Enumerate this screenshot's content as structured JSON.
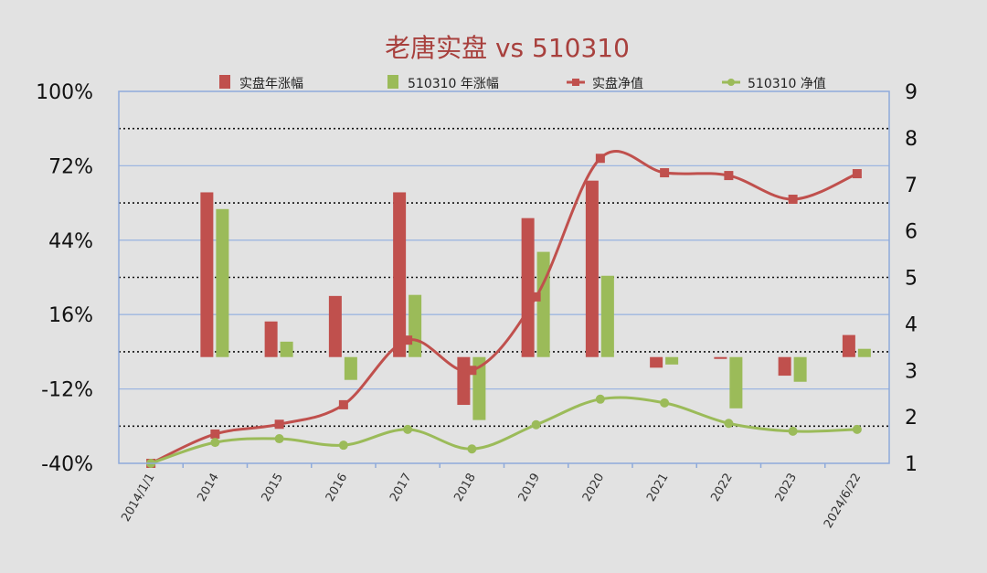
{
  "chart_data": {
    "type": "bar+line",
    "title": "老唐实盘 vs 510310",
    "categories": [
      "2014/1/1",
      "2014",
      "2015",
      "2016",
      "2017",
      "2018",
      "2019",
      "2020",
      "2021",
      "2022",
      "2023",
      "2024/6/22"
    ],
    "legend": [
      "实盘年涨幅",
      "510310 年涨幅",
      "实盘净值",
      "510310 净值"
    ],
    "legend_position": "top",
    "y_left": {
      "ticks": [
        "100%",
        "72%",
        "44%",
        "16%",
        "-12%",
        "-40%"
      ],
      "range": [
        -40,
        100
      ],
      "unit": "%"
    },
    "y_right": {
      "ticks": [
        "1",
        "2",
        "3",
        "4",
        "5",
        "6",
        "7",
        "8",
        "9"
      ],
      "range": [
        1,
        9
      ]
    },
    "series": [
      {
        "name": "实盘年涨幅",
        "type": "bar",
        "axis": "left",
        "color": "#c0504d",
        "values": [
          null,
          62,
          13.4,
          23,
          62,
          -18,
          52.3,
          66.4,
          -4,
          -0.7,
          -7,
          8.3
        ]
      },
      {
        "name": "510310 年涨幅",
        "type": "bar",
        "axis": "left",
        "color": "#9bbb59",
        "values": [
          null,
          55.7,
          5.8,
          -8.6,
          23.4,
          -23.7,
          39.6,
          30.6,
          -2.8,
          -19.3,
          -9.3,
          3.1
        ]
      },
      {
        "name": "实盘净值",
        "type": "line",
        "axis": "right",
        "color": "#c0504d",
        "marker": "square",
        "values": [
          1.0,
          1.63,
          1.84,
          2.26,
          3.65,
          3.0,
          4.58,
          7.56,
          7.25,
          7.19,
          6.68,
          7.23
        ]
      },
      {
        "name": "510310 净值",
        "type": "line",
        "axis": "right",
        "color": "#9bbb59",
        "marker": "diamond",
        "values": [
          1.0,
          1.45,
          1.53,
          1.39,
          1.73,
          1.31,
          1.83,
          2.38,
          2.3,
          1.86,
          1.69,
          1.73
        ]
      }
    ],
    "grid": true
  }
}
